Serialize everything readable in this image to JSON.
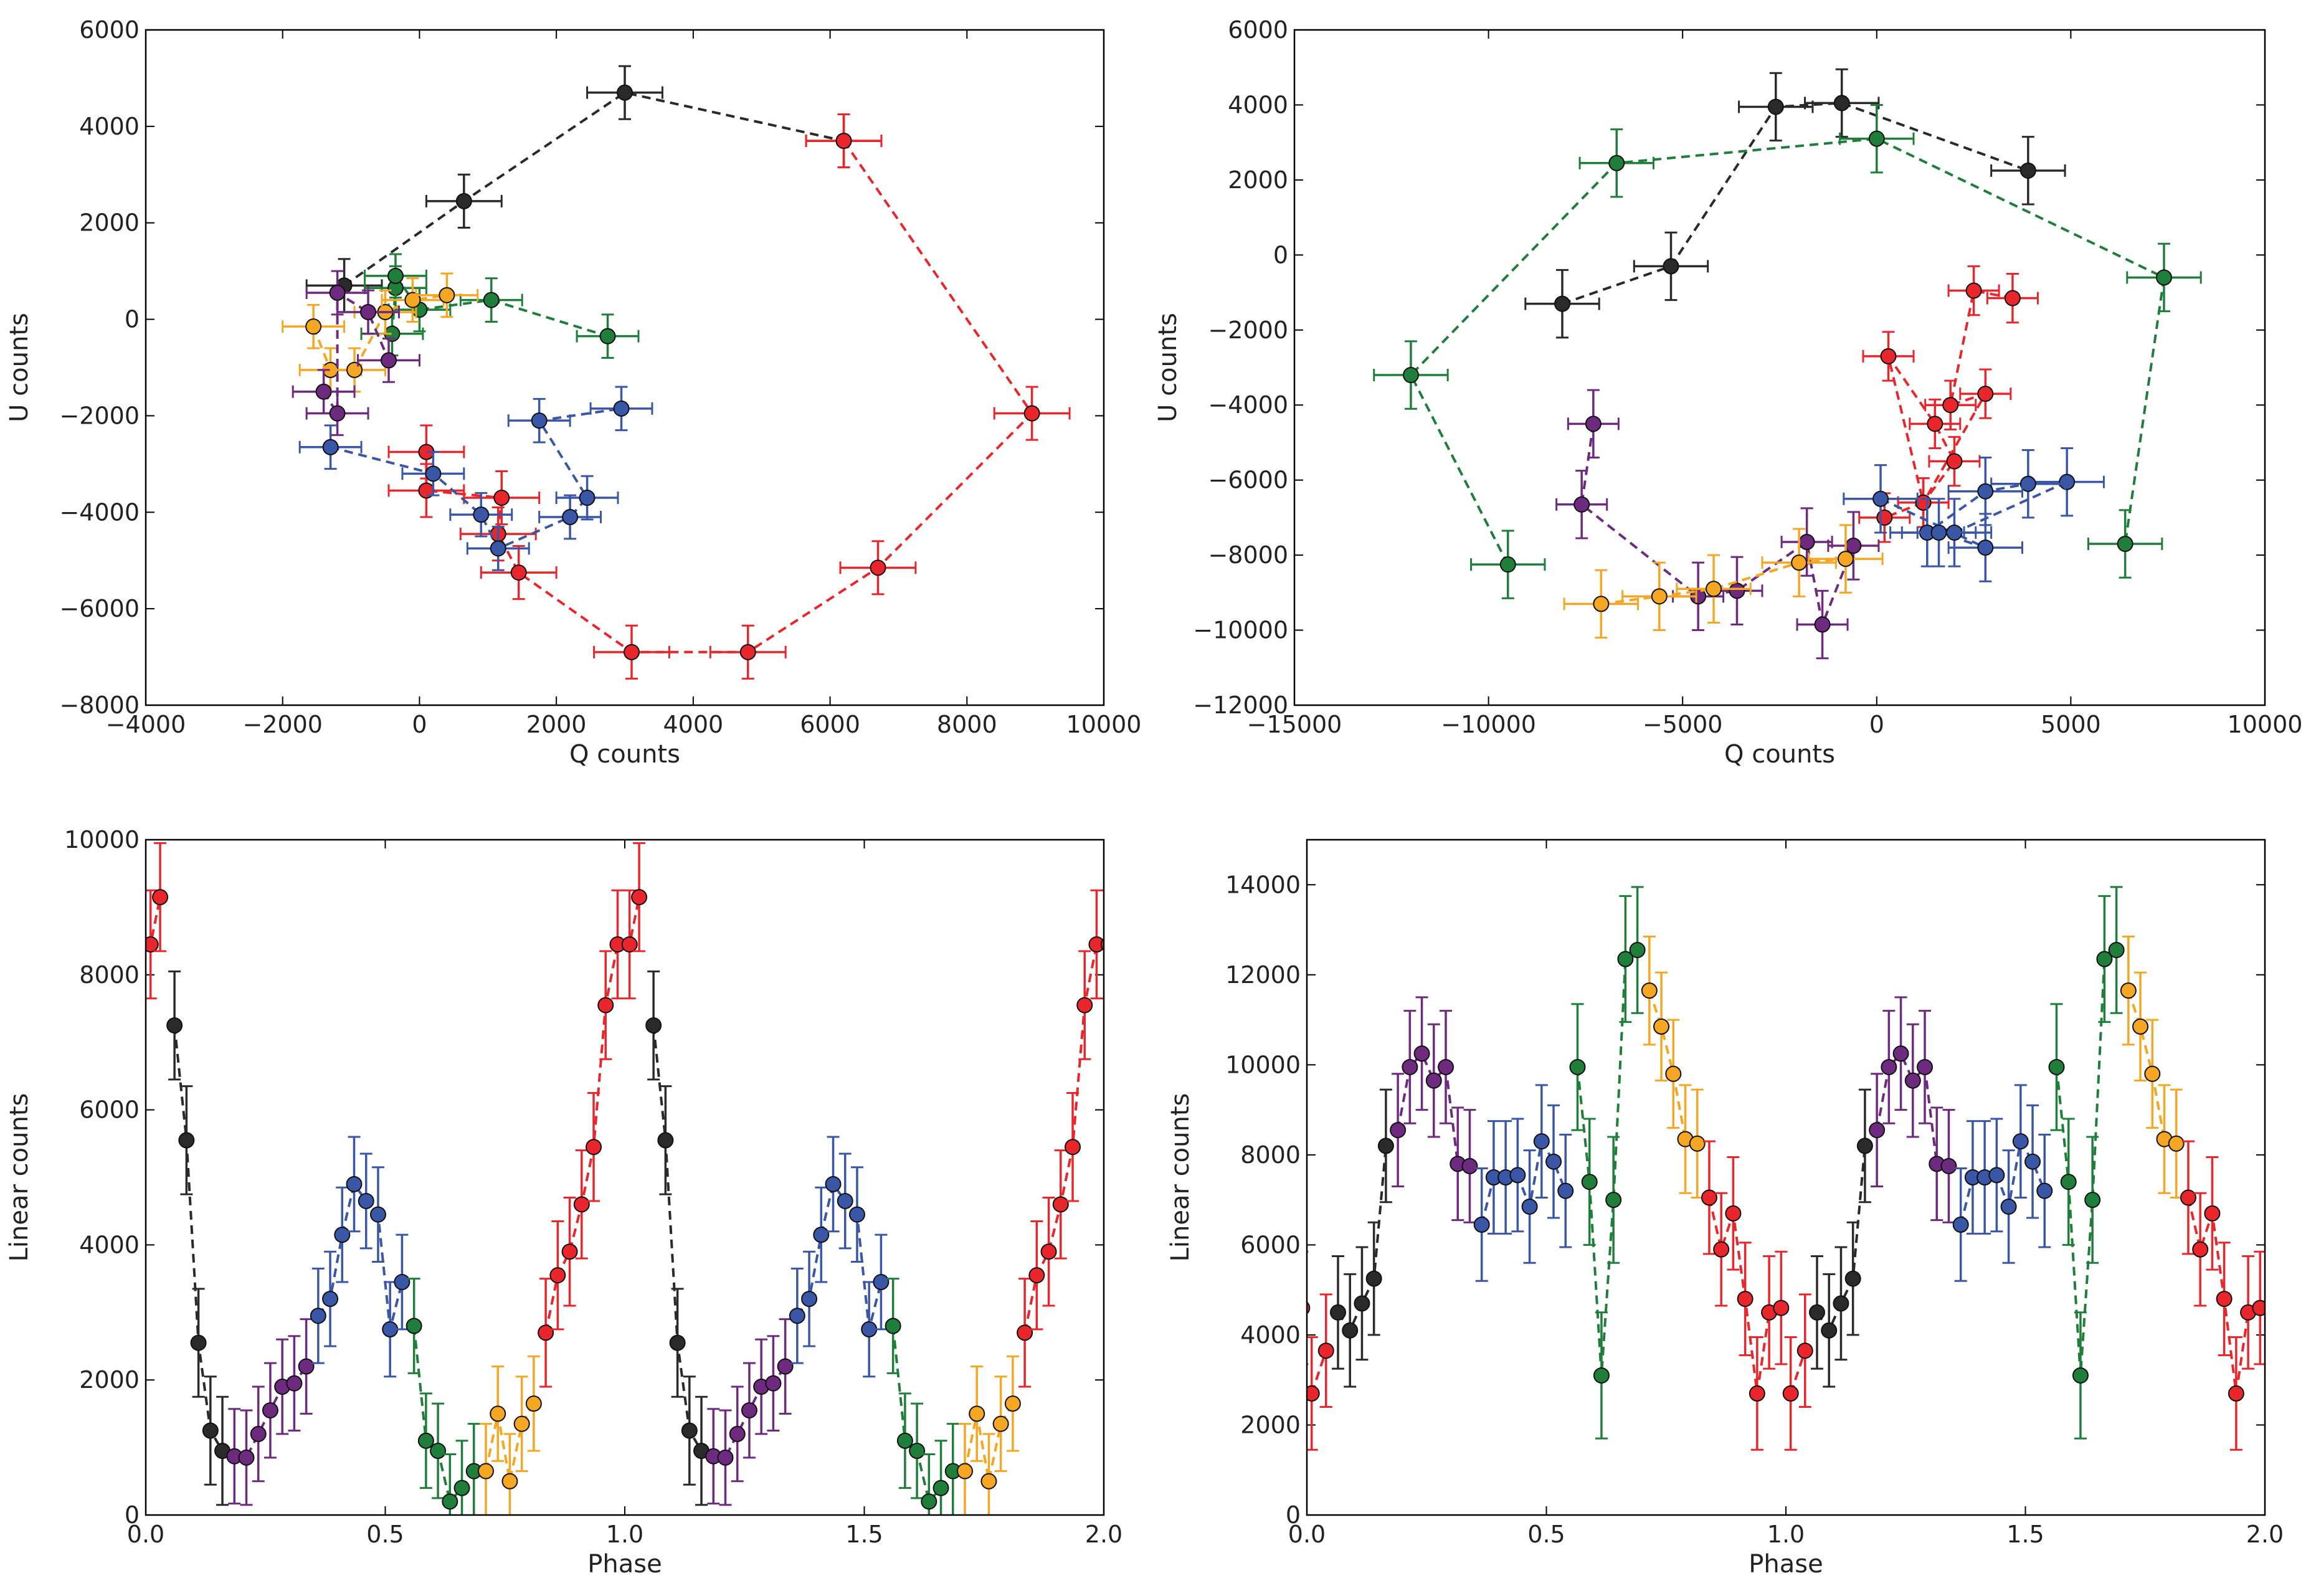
{
  "colors": {
    "black": "#2a2a2a",
    "red": "#e8262b",
    "blue": "#3a56a6",
    "purple": "#6e2a7f",
    "green": "#1f7e3a",
    "orange": "#f5a623"
  },
  "chart_data": [
    {
      "id": "top-left",
      "type": "scatter",
      "xlabel": "Q counts",
      "ylabel": "U counts",
      "xlim": [
        -4000,
        10000
      ],
      "ylim": [
        -8000,
        6000
      ],
      "xticks": [
        -4000,
        -2000,
        0,
        2000,
        4000,
        6000,
        8000,
        10000
      ],
      "yticks": [
        -8000,
        -6000,
        -4000,
        -2000,
        0,
        2000,
        4000,
        6000
      ],
      "xtick_labels": [
        "−4000",
        "−2000",
        "0",
        "2000",
        "4000",
        "6000",
        "8000",
        "10000"
      ],
      "ytick_labels": [
        "−8000",
        "−6000",
        "−4000",
        "−2000",
        "0",
        "2000",
        "4000",
        "6000"
      ],
      "series": [
        {
          "name": "black",
          "color": "black",
          "xerr": 550,
          "yerr": 550,
          "points": [
            [
              -1100,
              700
            ],
            [
              650,
              2450
            ],
            [
              3000,
              4700
            ],
            [
              6200,
              3700
            ]
          ]
        },
        {
          "name": "red",
          "color": "red",
          "xerr": 550,
          "yerr": 550,
          "points": [
            [
              6200,
              3700
            ],
            [
              8950,
              -1950
            ],
            [
              6700,
              -5150
            ],
            [
              4800,
              -6900
            ],
            [
              3100,
              -6900
            ],
            [
              1450,
              -5250
            ],
            [
              1150,
              -4450
            ],
            [
              1200,
              -3700
            ],
            [
              100,
              -3550
            ],
            [
              100,
              -2750
            ]
          ]
        },
        {
          "name": "blue",
          "color": "blue",
          "xerr": 450,
          "yerr": 450,
          "points": [
            [
              -1300,
              -2650
            ],
            [
              200,
              -3200
            ],
            [
              900,
              -4050
            ],
            [
              1150,
              -4750
            ],
            [
              2200,
              -4100
            ],
            [
              2450,
              -3700
            ],
            [
              1750,
              -2100
            ],
            [
              2950,
              -1850
            ]
          ]
        },
        {
          "name": "green",
          "color": "green",
          "xerr": 450,
          "yerr": 450,
          "points": [
            [
              -400,
              -300
            ],
            [
              -350,
              650
            ],
            [
              -350,
              900
            ],
            [
              0,
              200
            ],
            [
              1050,
              400
            ],
            [
              2750,
              -350
            ]
          ]
        },
        {
          "name": "orange",
          "color": "orange",
          "xerr": 450,
          "yerr": 450,
          "points": [
            [
              -1550,
              -150
            ],
            [
              -1300,
              -1050
            ],
            [
              -950,
              -1050
            ],
            [
              -500,
              150
            ],
            [
              -100,
              400
            ],
            [
              400,
              500
            ]
          ]
        },
        {
          "name": "purple",
          "color": "purple",
          "xerr": 450,
          "yerr": 450,
          "points": [
            [
              -1400,
              -1500
            ],
            [
              -1200,
              -1950
            ],
            [
              -1200,
              550
            ],
            [
              -750,
              150
            ],
            [
              -450,
              -850
            ]
          ]
        }
      ]
    },
    {
      "id": "top-right",
      "type": "scatter",
      "xlabel": "Q counts",
      "ylabel": "U counts",
      "xlim": [
        -15000,
        10000
      ],
      "ylim": [
        -12000,
        6000
      ],
      "xticks": [
        -15000,
        -10000,
        -5000,
        0,
        5000,
        10000
      ],
      "yticks": [
        -12000,
        -10000,
        -8000,
        -6000,
        -4000,
        -2000,
        0,
        2000,
        4000,
        6000
      ],
      "xtick_labels": [
        "−15000",
        "−10000",
        "−5000",
        "0",
        "5000",
        "10000"
      ],
      "ytick_labels": [
        "−12000",
        "−10000",
        "−8000",
        "−6000",
        "−4000",
        "−2000",
        "0",
        "2000",
        "4000",
        "6000"
      ],
      "series": [
        {
          "name": "black",
          "color": "black",
          "xerr": 950,
          "yerr": 900,
          "points": [
            [
              -8100,
              -1300
            ],
            [
              -5300,
              -300
            ],
            [
              -2600,
              3950
            ],
            [
              -900,
              4050
            ],
            [
              3900,
              2250
            ]
          ]
        },
        {
          "name": "green",
          "color": "green",
          "xerr": 950,
          "yerr": 900,
          "points": [
            [
              -9500,
              -8250
            ],
            [
              -12000,
              -3200
            ],
            [
              -6700,
              2450
            ],
            [
              0,
              3100
            ],
            [
              7400,
              -600
            ],
            [
              6400,
              -7700
            ]
          ]
        },
        {
          "name": "red",
          "color": "red",
          "xerr": 650,
          "yerr": 650,
          "points": [
            [
              3500,
              -1150
            ],
            [
              2500,
              -950
            ],
            [
              1900,
              -4000
            ],
            [
              2800,
              -3700
            ],
            [
              1200,
              -6600
            ],
            [
              2000,
              -5500
            ],
            [
              1500,
              -4500
            ],
            [
              300,
              -2700
            ],
            [
              1200,
              -6600
            ],
            [
              200,
              -7000
            ]
          ]
        },
        {
          "name": "blue",
          "color": "blue",
          "xerr": 950,
          "yerr": 900,
          "points": [
            [
              2000,
              -7400
            ],
            [
              4900,
              -6050
            ],
            [
              3900,
              -6100
            ],
            [
              2800,
              -6300
            ],
            [
              1300,
              -7400
            ],
            [
              1600,
              -7400
            ],
            [
              2800,
              -7800
            ],
            [
              100,
              -6500
            ]
          ]
        },
        {
          "name": "purple",
          "color": "purple",
          "xerr": 650,
          "yerr": 900,
          "points": [
            [
              -7300,
              -4500
            ],
            [
              -7600,
              -6650
            ],
            [
              -4600,
              -9100
            ],
            [
              -3600,
              -8950
            ],
            [
              -1800,
              -7650
            ],
            [
              -1400,
              -9850
            ],
            [
              -600,
              -7750
            ]
          ]
        },
        {
          "name": "orange",
          "color": "orange",
          "xerr": 950,
          "yerr": 900,
          "points": [
            [
              -7100,
              -9300
            ],
            [
              -5600,
              -9100
            ],
            [
              -4200,
              -8900
            ],
            [
              -2000,
              -8200
            ],
            [
              -800,
              -8100
            ]
          ]
        }
      ]
    },
    {
      "id": "bottom-left",
      "type": "line",
      "xlabel": "Phase",
      "ylabel": "Linear counts",
      "xlim": [
        0.0,
        2.0
      ],
      "ylim": [
        0,
        10000
      ],
      "xticks": [
        0.0,
        0.5,
        1.0,
        1.5,
        2.0
      ],
      "yticks": [
        0,
        2000,
        4000,
        6000,
        8000,
        10000
      ],
      "xtick_labels": [
        "0.0",
        "0.5",
        "1.0",
        "1.5",
        "2.0"
      ],
      "ytick_labels": [
        "0",
        "2000",
        "4000",
        "6000",
        "8000",
        "10000"
      ],
      "repeat_period": 1.0,
      "series": [
        {
          "name": "black",
          "color": "black",
          "yerr": 800,
          "points": [
            [
              0.06,
              7250
            ],
            [
              0.085,
              5550
            ],
            [
              0.11,
              2550
            ],
            [
              0.135,
              1250
            ],
            [
              0.16,
              950
            ]
          ]
        },
        {
          "name": "purple",
          "color": "purple",
          "yerr": 700,
          "points": [
            [
              0.185,
              870
            ],
            [
              0.21,
              850
            ],
            [
              0.235,
              1200
            ],
            [
              0.26,
              1550
            ],
            [
              0.285,
              1900
            ],
            [
              0.31,
              1950
            ],
            [
              0.335,
              2200
            ]
          ]
        },
        {
          "name": "blue",
          "color": "blue",
          "yerr": 700,
          "points": [
            [
              0.36,
              2950
            ],
            [
              0.385,
              3200
            ],
            [
              0.41,
              4150
            ],
            [
              0.435,
              4900
            ],
            [
              0.46,
              4650
            ],
            [
              0.485,
              4450
            ],
            [
              0.51,
              2750
            ],
            [
              0.535,
              3450
            ]
          ]
        },
        {
          "name": "green",
          "color": "green",
          "yerr": 700,
          "points": [
            [
              0.56,
              2800
            ],
            [
              0.585,
              1100
            ],
            [
              0.61,
              950
            ],
            [
              0.635,
              200
            ],
            [
              0.66,
              400
            ],
            [
              0.685,
              650
            ]
          ]
        },
        {
          "name": "orange",
          "color": "orange",
          "yerr": 700,
          "points": [
            [
              0.71,
              650
            ],
            [
              0.735,
              1500
            ],
            [
              0.76,
              500
            ],
            [
              0.785,
              1350
            ],
            [
              0.81,
              1650
            ]
          ]
        },
        {
          "name": "red",
          "color": "red",
          "yerr": 800,
          "points": [
            [
              0.835,
              2700
            ],
            [
              0.86,
              3550
            ],
            [
              0.885,
              3900
            ],
            [
              0.91,
              4600
            ],
            [
              0.935,
              5450
            ],
            [
              0.96,
              7550
            ],
            [
              0.985,
              8450
            ],
            [
              1.01,
              8450
            ],
            [
              1.03,
              9150
            ]
          ]
        }
      ]
    },
    {
      "id": "bottom-right",
      "type": "line",
      "xlabel": "Phase",
      "ylabel": "Linear counts",
      "xlim": [
        0.0,
        2.0
      ],
      "ylim": [
        0,
        15000
      ],
      "xticks": [
        0.0,
        0.5,
        1.0,
        1.5,
        2.0
      ],
      "yticks": [
        0,
        2000,
        4000,
        6000,
        8000,
        10000,
        12000,
        14000
      ],
      "xtick_labels": [
        "0.0",
        "0.5",
        "1.0",
        "1.5",
        "2.0"
      ],
      "ytick_labels": [
        "0",
        "2000",
        "4000",
        "6000",
        "8000",
        "10000",
        "12000",
        "14000"
      ],
      "repeat_period": 1.0,
      "series": [
        {
          "name": "red",
          "color": "red",
          "yerr": 1250,
          "points": [
            [
              0.01,
              2700
            ],
            [
              0.04,
              3650
            ]
          ]
        },
        {
          "name": "black",
          "color": "black",
          "yerr": 1250,
          "points": [
            [
              0.065,
              4500
            ],
            [
              0.09,
              4100
            ],
            [
              0.115,
              4700
            ],
            [
              0.14,
              5250
            ],
            [
              0.165,
              8200
            ]
          ]
        },
        {
          "name": "purple",
          "color": "purple",
          "yerr": 1250,
          "points": [
            [
              0.19,
              8550
            ],
            [
              0.215,
              9950
            ],
            [
              0.24,
              10250
            ],
            [
              0.265,
              9650
            ],
            [
              0.29,
              9950
            ],
            [
              0.315,
              7800
            ],
            [
              0.34,
              7750
            ]
          ]
        },
        {
          "name": "blue",
          "color": "blue",
          "yerr": 1250,
          "points": [
            [
              0.365,
              6450
            ],
            [
              0.39,
              7500
            ],
            [
              0.415,
              7500
            ],
            [
              0.44,
              7550
            ],
            [
              0.465,
              6850
            ],
            [
              0.49,
              8300
            ],
            [
              0.515,
              7850
            ],
            [
              0.54,
              7200
            ]
          ]
        },
        {
          "name": "green",
          "color": "green",
          "yerr": 1400,
          "points": [
            [
              0.565,
              9950
            ],
            [
              0.59,
              7400
            ],
            [
              0.615,
              3100
            ],
            [
              0.64,
              7000
            ],
            [
              0.665,
              12350
            ],
            [
              0.69,
              12550
            ]
          ]
        },
        {
          "name": "orange",
          "color": "orange",
          "yerr": 1200,
          "points": [
            [
              0.715,
              11650
            ],
            [
              0.74,
              10850
            ],
            [
              0.765,
              9800
            ],
            [
              0.79,
              8350
            ],
            [
              0.815,
              8250
            ]
          ]
        },
        {
          "name": "red",
          "color": "red",
          "yerr": 1250,
          "points": [
            [
              0.84,
              7050
            ],
            [
              0.865,
              5900
            ],
            [
              0.89,
              6700
            ],
            [
              0.915,
              4800
            ],
            [
              0.94,
              2700
            ],
            [
              0.965,
              4500
            ],
            [
              0.99,
              4600
            ]
          ]
        }
      ]
    }
  ]
}
